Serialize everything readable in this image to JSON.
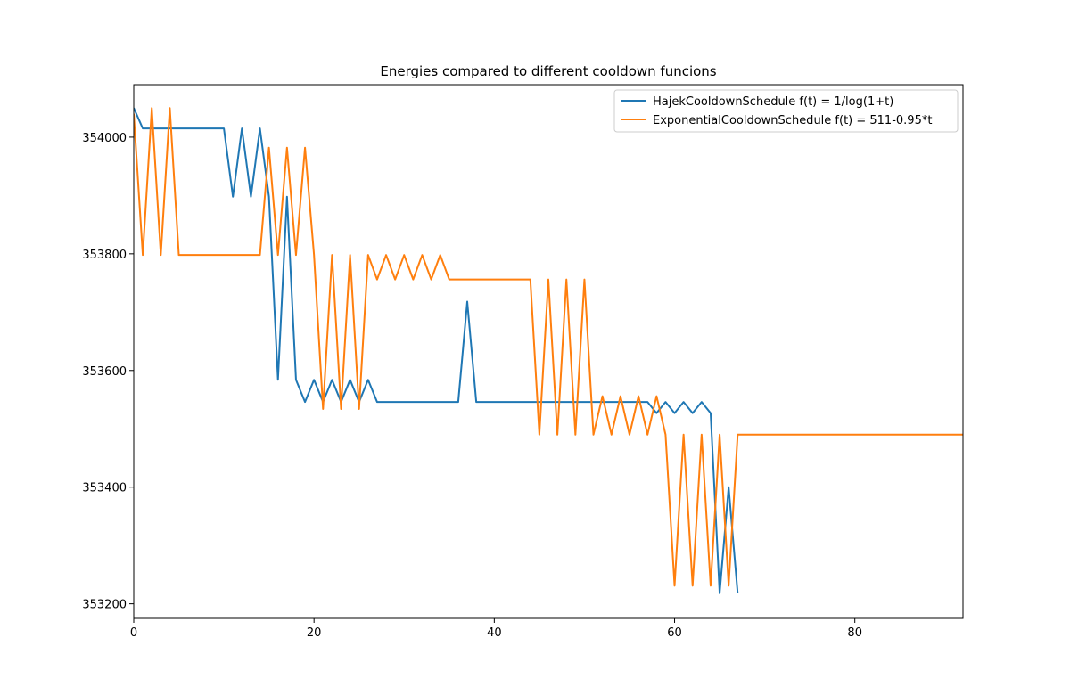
{
  "chart_data": {
    "type": "line",
    "title": "Energies compared to different cooldown funcions",
    "xlabel": "",
    "ylabel": "",
    "xlim": [
      0,
      92
    ],
    "ylim": [
      353175,
      354090
    ],
    "xticks": [
      0,
      20,
      40,
      60,
      80
    ],
    "yticks": [
      353200,
      353400,
      353600,
      353800,
      354000
    ],
    "grid": false,
    "legend_position": "top-right",
    "series": [
      {
        "name": "HajekCooldownSchedule f(t) = 1/log(1+t)",
        "color": "#1f77b4",
        "x": [
          0,
          1,
          2,
          3,
          4,
          5,
          6,
          7,
          8,
          9,
          10,
          11,
          12,
          13,
          14,
          15,
          16,
          17,
          18,
          19,
          20,
          21,
          22,
          23,
          24,
          25,
          26,
          27,
          28,
          29,
          30,
          31,
          32,
          33,
          34,
          35,
          36,
          37,
          38,
          39,
          40,
          41,
          42,
          43,
          44,
          45,
          46,
          47,
          48,
          49,
          50,
          51,
          52,
          53,
          54,
          55,
          56,
          57,
          58,
          59,
          60,
          61,
          62,
          63,
          64,
          65,
          66,
          67
        ],
        "y": [
          354050,
          354015,
          354015,
          354015,
          354015,
          354015,
          354015,
          354015,
          354015,
          354015,
          354015,
          353898,
          354015,
          353898,
          354015,
          353898,
          353584,
          353898,
          353584,
          353546,
          353584,
          353546,
          353584,
          353546,
          353584,
          353546,
          353584,
          353546,
          353546,
          353546,
          353546,
          353546,
          353546,
          353546,
          353546,
          353546,
          353546,
          353718,
          353546,
          353546,
          353546,
          353546,
          353546,
          353546,
          353546,
          353546,
          353546,
          353546,
          353546,
          353546,
          353546,
          353546,
          353546,
          353546,
          353546,
          353546,
          353546,
          353546,
          353527,
          353546,
          353527,
          353546,
          353527,
          353546,
          353527,
          353218,
          353400,
          353218
        ]
      },
      {
        "name": "ExponentialCooldownSchedule f(t) = 511-0.95*t",
        "color": "#ff7f0e",
        "x": [
          0,
          1,
          2,
          3,
          4,
          5,
          6,
          7,
          8,
          9,
          10,
          11,
          12,
          13,
          14,
          15,
          16,
          17,
          18,
          19,
          20,
          21,
          22,
          23,
          24,
          25,
          26,
          27,
          28,
          29,
          30,
          31,
          32,
          33,
          34,
          35,
          36,
          37,
          38,
          39,
          40,
          41,
          42,
          43,
          44,
          45,
          46,
          47,
          48,
          49,
          50,
          51,
          52,
          53,
          54,
          55,
          56,
          57,
          58,
          59,
          60,
          61,
          62,
          63,
          64,
          65,
          66,
          67,
          68,
          70,
          75,
          80,
          85,
          90,
          92
        ],
        "y": [
          354040,
          353798,
          354050,
          353798,
          354050,
          353798,
          353798,
          353798,
          353798,
          353798,
          353798,
          353798,
          353798,
          353798,
          353798,
          353982,
          353798,
          353982,
          353798,
          353982,
          353798,
          353534,
          353798,
          353534,
          353798,
          353534,
          353798,
          353756,
          353798,
          353756,
          353798,
          353756,
          353798,
          353756,
          353798,
          353756,
          353756,
          353756,
          353756,
          353756,
          353756,
          353756,
          353756,
          353756,
          353756,
          353490,
          353756,
          353490,
          353756,
          353490,
          353756,
          353490,
          353556,
          353490,
          353556,
          353490,
          353556,
          353490,
          353556,
          353490,
          353231,
          353490,
          353231,
          353490,
          353231,
          353490,
          353231,
          353490,
          353490,
          353490,
          353490,
          353490,
          353490,
          353490,
          353490
        ]
      }
    ]
  }
}
